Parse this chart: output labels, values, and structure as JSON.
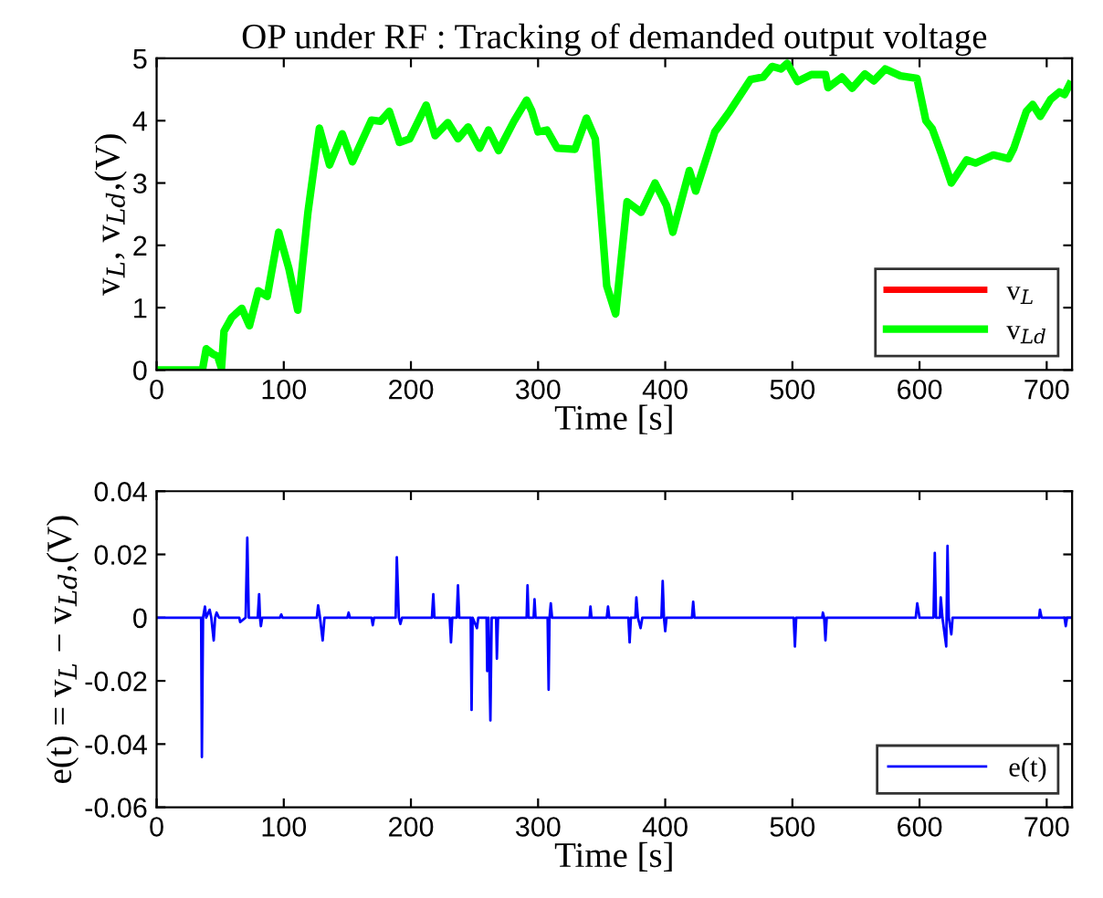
{
  "chart_data": [
    {
      "type": "line",
      "title": "OP under RF : Tracking of demanded output voltage",
      "xlabel": "Time [s]",
      "ylabel": "v$_{L}$, v$_{Ld}$,(V)",
      "xlim": [
        0,
        720
      ],
      "xticks": [
        0,
        100,
        200,
        300,
        400,
        500,
        600,
        700
      ],
      "ylim": [
        0,
        5
      ],
      "yticks": [
        0,
        1,
        2,
        3,
        4,
        5
      ],
      "grid": false,
      "legend": "lower right",
      "x": [
        0,
        36,
        39,
        44,
        48,
        51,
        53,
        59,
        67,
        73,
        80,
        87,
        96,
        104,
        111,
        119,
        128,
        136,
        146,
        154,
        169,
        176,
        183,
        191,
        199,
        212,
        219,
        229,
        237,
        245,
        254,
        261,
        269,
        281,
        291,
        295,
        300,
        307,
        315,
        329,
        338,
        345,
        354,
        361,
        370,
        381,
        392,
        401,
        406,
        419,
        424,
        439,
        451,
        467,
        477,
        484,
        491,
        496,
        504,
        515,
        526,
        528,
        539,
        547,
        557,
        564,
        573,
        585,
        598,
        605,
        610,
        617,
        625,
        637,
        644,
        658,
        670,
        674,
        684,
        689,
        695,
        703,
        710,
        714,
        718
      ],
      "series": [
        {
          "name": "v$_{L}$",
          "color": "#ff0000",
          "values": [
            null,
            null,
            null,
            null,
            null,
            null,
            null,
            null,
            null,
            null,
            null,
            null,
            null,
            null,
            null,
            null,
            null,
            null,
            null,
            null,
            null,
            null,
            null,
            null,
            null,
            null,
            null,
            null,
            null,
            null,
            null,
            null,
            null,
            null,
            null,
            null,
            null,
            null,
            null,
            null,
            null,
            null,
            null,
            null,
            null,
            null,
            null,
            null,
            null,
            null,
            null,
            null,
            null,
            null,
            null,
            null,
            null,
            null,
            null,
            null,
            null,
            null,
            null,
            null,
            null,
            null,
            null,
            null,
            null,
            null,
            null,
            null,
            null,
            null,
            null,
            null,
            null,
            null,
            null,
            null,
            null,
            null,
            null,
            null,
            null
          ]
        },
        {
          "name": "v$_{Ld}$",
          "color": "#00ff00",
          "values": [
            0,
            0,
            0.34,
            0.26,
            0.22,
            0.03,
            0.62,
            0.84,
            0.99,
            0.71,
            1.27,
            1.18,
            2.21,
            1.63,
            0.96,
            2.53,
            3.88,
            3.29,
            3.79,
            3.34,
            4.01,
            3.99,
            4.15,
            3.65,
            3.71,
            4.25,
            3.76,
            3.97,
            3.71,
            3.9,
            3.56,
            3.85,
            3.52,
            3.99,
            4.33,
            4.16,
            3.82,
            3.85,
            3.56,
            3.54,
            4.04,
            3.71,
            1.35,
            0.9,
            2.7,
            2.53,
            3.0,
            2.64,
            2.21,
            3.2,
            2.87,
            3.82,
            4.16,
            4.66,
            4.7,
            4.87,
            4.83,
            4.92,
            4.63,
            4.74,
            4.74,
            4.53,
            4.7,
            4.52,
            4.75,
            4.64,
            4.83,
            4.72,
            4.68,
            4.0,
            3.87,
            3.48,
            3.0,
            3.37,
            3.32,
            3.45,
            3.39,
            3.55,
            4.15,
            4.26,
            4.07,
            4.34,
            4.46,
            4.42,
            4.58
          ]
        }
      ]
    },
    {
      "type": "line",
      "xlabel": "Time [s]",
      "ylabel": "e(t) = v$_{L}$ − v$_{Ld}$,(V)",
      "xlim": [
        0,
        720
      ],
      "xticks": [
        0,
        100,
        200,
        300,
        400,
        500,
        600,
        700
      ],
      "ylim": [
        -0.06,
        0.04
      ],
      "yticks": [
        -0.06,
        -0.04,
        -0.02,
        0,
        0.02,
        0.04
      ],
      "grid": false,
      "legend": "lower right",
      "x": [
        0,
        35,
        35.6,
        36.5,
        38,
        39,
        41.7,
        43,
        44.9,
        46,
        47.2,
        49,
        65,
        65.7,
        70,
        71.3,
        72.5,
        79.5,
        80.6,
        81.3,
        82,
        83,
        97,
        98,
        99,
        126,
        127,
        128.5,
        130.6,
        132,
        150,
        151,
        152,
        169,
        170,
        171,
        188,
        188.9,
        190.5,
        191.7,
        193,
        216.5,
        217.6,
        218.5,
        230.5,
        231.5,
        232.5,
        236,
        237,
        238,
        247,
        247.7,
        248.5,
        251.9,
        253,
        259.5,
        260,
        261,
        262.5,
        263.5,
        267,
        267.6,
        268.5,
        291,
        291.7,
        292.5,
        296.5,
        297.2,
        298,
        307.5,
        308.3,
        309,
        310,
        311,
        340.5,
        341.2,
        342,
        354,
        355,
        356,
        371,
        372,
        373,
        376.5,
        377.3,
        378.5,
        380.6,
        382,
        397,
        398,
        399,
        400,
        401,
        421,
        422,
        423,
        501,
        502,
        503,
        523.5,
        524,
        525,
        526,
        527,
        597,
        598.2,
        600,
        611,
        612,
        613,
        616,
        616.7,
        618,
        621,
        622,
        623,
        625,
        626,
        694,
        694.7,
        696,
        714,
        715,
        716,
        720
      ],
      "series": [
        {
          "name": "e(t)",
          "color": "#0000ff",
          "values": [
            0,
            0,
            -0.0441,
            0,
            0.0035,
            0,
            0.0025,
            0,
            -0.0072,
            0,
            0.0016,
            0,
            0,
            -0.0014,
            0,
            0.0253,
            0,
            0,
            0.0074,
            0,
            -0.0027,
            0,
            0,
            0.001,
            0,
            0,
            0.0039,
            0,
            -0.0072,
            0,
            0,
            0.0016,
            0,
            0,
            -0.0024,
            0,
            0,
            0.0191,
            0,
            -0.002,
            0,
            0,
            0.0074,
            0,
            0,
            -0.0078,
            0,
            0,
            0.0102,
            0,
            0,
            -0.0292,
            0,
            -0.0033,
            0,
            0,
            -0.0169,
            0,
            -0.0325,
            0,
            0,
            -0.013,
            0,
            0,
            0.0102,
            0,
            0,
            0.0058,
            0,
            0,
            -0.0228,
            0,
            0.0045,
            0,
            0,
            0.0035,
            0,
            0,
            0.0035,
            0,
            0,
            -0.0078,
            0,
            0,
            0.0064,
            0,
            -0.0033,
            0,
            0,
            0.0116,
            0,
            -0.0043,
            0,
            0,
            0.005,
            0,
            0,
            -0.0091,
            0,
            0,
            0.0016,
            0,
            -0.0072,
            0,
            0,
            0.0045,
            0,
            0,
            0.0205,
            0,
            0,
            0.0064,
            0,
            -0.0091,
            0.0227,
            0,
            -0.0053,
            0,
            0,
            0.0025,
            0,
            0,
            -0.0027,
            0,
            0
          ]
        }
      ]
    }
  ]
}
